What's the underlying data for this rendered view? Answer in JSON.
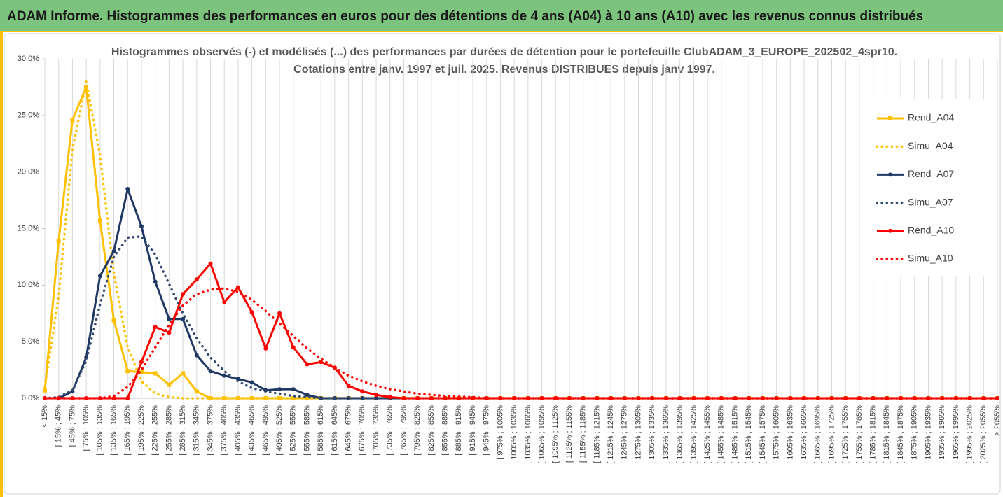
{
  "chart_data": {
    "type": "line",
    "title": "ADAM Informe. Histogrammes des performances en euros pour des détentions de 4 ans (A04) à 10 ans (A10) avec les revenus connus distribués",
    "subtitle": [
      "Histogrammes observés (-) et modélisés (...) des performances par durées de détention pour le portefeuille ClubADAM_3_EUROPE_202502_4spr10.",
      "Cotations entre janv. 1997 et juil. 2025. Revenus DISTRIBUES depuis janv 1997."
    ],
    "categories": [
      "< 15%",
      "[ 15% ; 45%",
      "[ 45% ; 75%",
      "[ 75% ; 105%",
      "[ 105% ; 135%",
      "[ 135% ; 165%",
      "[ 165% ; 195%",
      "[ 195% ; 225%",
      "[ 225% ; 255%",
      "[ 255% ; 285%",
      "[ 285% ; 315%",
      "[ 315% ; 345%",
      "[ 345% ; 375%",
      "[ 375% ; 405%",
      "[ 405% ; 435%",
      "[ 435% ; 465%",
      "[ 465% ; 495%",
      "[ 495% ; 525%",
      "[ 525% ; 555%",
      "[ 555% ; 585%",
      "[ 585% ; 615%",
      "[ 615% ; 645%",
      "[ 645% ; 675%",
      "[ 675% ; 705%",
      "[ 705% ; 735%",
      "[ 735% ; 765%",
      "[ 765% ; 795%",
      "[ 795% ; 825%",
      "[ 825% ; 855%",
      "[ 855% ; 885%",
      "[ 885% ; 915%",
      "[ 915% ; 945%",
      "[ 945% ; 975%",
      "[ 975% ; 1005%",
      "[ 1005% ; 1035%",
      "[ 1035% ; 1065%",
      "[ 1065% ; 1095%",
      "[ 1095% ; 1125%",
      "[ 1125% ; 1155%",
      "[ 1155% ; 1185%",
      "[ 1185% ; 1215%",
      "[ 1215% ; 1245%",
      "[ 1245% ; 1275%",
      "[ 1275% ; 1305%",
      "[ 1305% ; 1335%",
      "[ 1335% ; 1365%",
      "[ 1365% ; 1395%",
      "[ 1395% ; 1425%",
      "[ 1425% ; 1455%",
      "[ 1455% ; 1485%",
      "[ 1485% ; 1515%",
      "[ 1515% ; 1545%",
      "[ 1545% ; 1575%",
      "[ 1575% ; 1605%",
      "[ 1605% ; 1635%",
      "[ 1635% ; 1665%",
      "[ 1665% ; 1695%",
      "[ 1695% ; 1725%",
      "[ 1725% ; 1755%",
      "[ 1755% ; 1785%",
      "[ 1785% ; 1815%",
      "[ 1815% ; 1845%",
      "[ 1845% ; 1875%",
      "[ 1875% ; 1905%",
      "[ 1905% ; 1935%",
      "[ 1935% ; 1965%",
      "[ 1965% ; 1995%",
      "[ 1995% ; 2025%",
      "[ 2025% ; 2055%",
      "> 2055%"
    ],
    "series": [
      {
        "name": "Rend_A04",
        "color": "#ffc000",
        "style": "solid",
        "marker": "square",
        "values": [
          0.7,
          13.9,
          24.6,
          27.5,
          15.7,
          6.9,
          2.4,
          2.3,
          2.2,
          1.2,
          2.2,
          0.6,
          0,
          0,
          0,
          0,
          0,
          0,
          0,
          0,
          0,
          0,
          0,
          0,
          0,
          0,
          0,
          0,
          0,
          0,
          0,
          0,
          0,
          0,
          0,
          0,
          0,
          0,
          0,
          0,
          0,
          0,
          0,
          0,
          0,
          0,
          0,
          0,
          0,
          0,
          0,
          0,
          0,
          0,
          0,
          0,
          0,
          0,
          0,
          0,
          0,
          0,
          0,
          0,
          0,
          0,
          0,
          0,
          0,
          0
        ]
      },
      {
        "name": "Simu_A04",
        "color": "#ffc000",
        "style": "dotted",
        "marker": "none",
        "values": [
          1,
          9,
          22,
          28,
          21.5,
          11,
          4.5,
          1.5,
          0.4,
          0.1,
          0,
          0,
          0,
          0,
          0,
          0,
          0,
          0,
          0,
          0,
          0,
          0,
          0,
          0,
          0,
          0,
          0,
          0,
          0,
          0,
          0,
          0,
          0,
          0,
          0,
          0,
          0,
          0,
          0,
          0,
          0,
          0,
          0,
          0,
          0,
          0,
          0,
          0,
          0,
          0,
          0,
          0,
          0,
          0,
          0,
          0,
          0,
          0,
          0,
          0,
          0,
          0,
          0,
          0,
          0,
          0,
          0,
          0,
          0,
          0
        ]
      },
      {
        "name": "Rend_A07",
        "color": "#1f3864",
        "style": "solid",
        "marker": "circle",
        "values": [
          0,
          0,
          0.6,
          3.6,
          10.8,
          13,
          18.5,
          15.2,
          10.3,
          7,
          7,
          3.8,
          2.4,
          2,
          1.7,
          1.4,
          0.7,
          0.8,
          0.8,
          0.3,
          0,
          0,
          0,
          0,
          0,
          0,
          0,
          0,
          0,
          0,
          0,
          0,
          0,
          0,
          0,
          0,
          0,
          0,
          0,
          0,
          0,
          0,
          0,
          0,
          0,
          0,
          0,
          0,
          0,
          0,
          0,
          0,
          0,
          0,
          0,
          0,
          0,
          0,
          0,
          0,
          0,
          0,
          0,
          0,
          0,
          0,
          0,
          0,
          0,
          0
        ]
      },
      {
        "name": "Simu_A07",
        "color": "#2e4a70",
        "style": "dotted",
        "marker": "none",
        "values": [
          0,
          0.1,
          0.7,
          3.3,
          8.3,
          12.5,
          14.2,
          14.3,
          12.7,
          10.1,
          7.5,
          5.3,
          3.6,
          2.4,
          1.5,
          0.9,
          0.6,
          0.4,
          0.2,
          0.1,
          0,
          0,
          0,
          0,
          0,
          0,
          0,
          0,
          0,
          0,
          0,
          0,
          0,
          0,
          0,
          0,
          0,
          0,
          0,
          0,
          0,
          0,
          0,
          0,
          0,
          0,
          0,
          0,
          0,
          0,
          0,
          0,
          0,
          0,
          0,
          0,
          0,
          0,
          0,
          0,
          0,
          0,
          0,
          0,
          0,
          0,
          0,
          0,
          0,
          0
        ]
      },
      {
        "name": "Rend_A10",
        "color": "#ff0000",
        "style": "solid",
        "marker": "circle",
        "values": [
          0,
          0,
          0,
          0,
          0,
          0,
          0,
          3.2,
          6.3,
          5.8,
          9.2,
          10.5,
          11.9,
          8.5,
          9.8,
          7.6,
          4.4,
          7.5,
          4.5,
          3,
          3.2,
          2.7,
          1.1,
          0.6,
          0.3,
          0.1,
          0,
          0,
          0,
          0,
          0,
          0,
          0,
          0,
          0,
          0,
          0,
          0,
          0,
          0,
          0,
          0,
          0,
          0,
          0,
          0,
          0,
          0,
          0,
          0,
          0,
          0,
          0,
          0,
          0,
          0,
          0,
          0,
          0,
          0,
          0,
          0,
          0,
          0,
          0,
          0,
          0,
          0,
          0,
          0
        ]
      },
      {
        "name": "Simu_A10",
        "color": "#ff0000",
        "style": "dotted",
        "marker": "none",
        "values": [
          0,
          0,
          0,
          0,
          0,
          0.2,
          1,
          2.5,
          4.5,
          6.5,
          8.2,
          9.2,
          9.6,
          9.7,
          9.4,
          8.7,
          7.7,
          6.6,
          5.5,
          4.4,
          3.5,
          2.7,
          2,
          1.5,
          1.1,
          0.8,
          0.6,
          0.4,
          0.3,
          0.2,
          0.15,
          0.1,
          0,
          0,
          0,
          0,
          0,
          0,
          0,
          0,
          0,
          0,
          0,
          0,
          0,
          0,
          0,
          0,
          0,
          0,
          0,
          0,
          0,
          0,
          0,
          0,
          0,
          0,
          0,
          0,
          0,
          0,
          0,
          0,
          0,
          0,
          0,
          0,
          0,
          0
        ]
      }
    ],
    "ylim": [
      0,
      30
    ],
    "yticks": [
      {
        "value": 0,
        "label": "0,0%"
      },
      {
        "value": 5,
        "label": "5,0%"
      },
      {
        "value": 10,
        "label": "10,0%"
      },
      {
        "value": 15,
        "label": "15,0%"
      },
      {
        "value": 20,
        "label": "20,0%"
      },
      {
        "value": 25,
        "label": "25,0%"
      },
      {
        "value": 30,
        "label": "30,0%"
      }
    ],
    "grid": "x",
    "legend": "right"
  }
}
